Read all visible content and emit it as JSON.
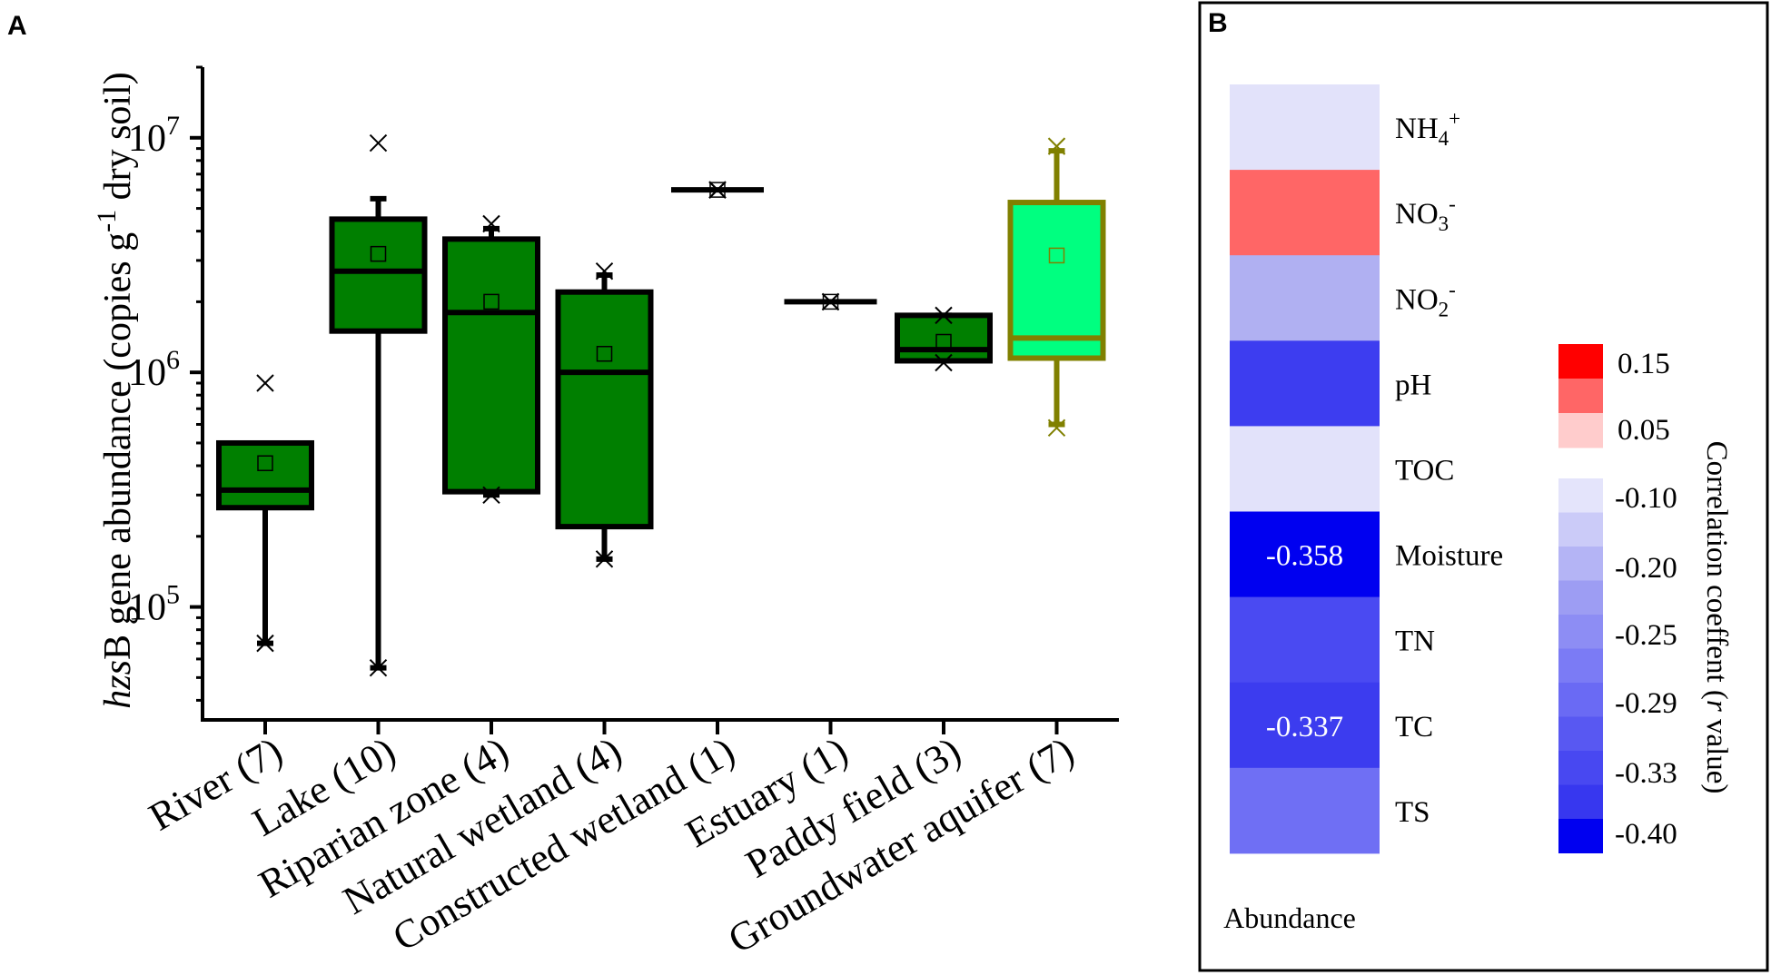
{
  "panelA": {
    "label": "A",
    "chart_data": {
      "type": "box",
      "yscale": "log",
      "ylim": [
        33000,
        20000000
      ],
      "yticks": [
        {
          "value": 100000,
          "base": "10",
          "exp": "5"
        },
        {
          "value": 1000000,
          "base": "10",
          "exp": "6"
        },
        {
          "value": 10000000,
          "base": "10",
          "exp": "7"
        }
      ],
      "ylabel": {
        "italic": "hzs",
        "pre": "B gene abundance (copies g",
        "sup": "-1",
        "post": " dry soil)"
      },
      "categories": [
        "River (7)",
        "Lake (10)",
        "Riparian zone (4)",
        "Natural wetland (4)",
        "Constructed wetland (1)",
        "Estuary (1)",
        "Paddy field (3)",
        "Groundwater aquifer (7)"
      ],
      "boxes": [
        {
          "q1": 265000,
          "median": 315000,
          "q3": 500000,
          "whisker_low": 70000,
          "whisker_high": 500000,
          "mean": 410000,
          "min": 70000,
          "max": 900000,
          "fill": "#007f00",
          "stroke": "#000000"
        },
        {
          "q1": 1500000,
          "median": 2700000,
          "q3": 4500000,
          "whisker_low": 55000,
          "whisker_high": 5500000,
          "mean": 3200000,
          "min": 55000,
          "max": 9500000,
          "fill": "#007f00",
          "stroke": "#000000"
        },
        {
          "q1": 310000,
          "median": 1800000,
          "q3": 3700000,
          "whisker_low": 300000,
          "whisker_high": 4100000,
          "mean": 2000000,
          "min": 300000,
          "max": 4300000,
          "fill": "#007f00",
          "stroke": "#000000"
        },
        {
          "q1": 220000,
          "median": 1000000,
          "q3": 2200000,
          "whisker_low": 160000,
          "whisker_high": 2600000,
          "mean": 1200000,
          "min": 160000,
          "max": 2700000,
          "fill": "#007f00",
          "stroke": "#000000"
        },
        {
          "q1": 6000000,
          "median": 6000000,
          "q3": 6000000,
          "whisker_low": 6000000,
          "whisker_high": 6000000,
          "mean": 6000000,
          "min": 6000000,
          "max": 6000000,
          "fill": "#007f00",
          "stroke": "#000000"
        },
        {
          "q1": 2000000,
          "median": 2000000,
          "q3": 2000000,
          "whisker_low": 2000000,
          "whisker_high": 2000000,
          "mean": 2000000,
          "min": 2000000,
          "max": 2000000,
          "fill": "#007f00",
          "stroke": "#000000"
        },
        {
          "q1": 1120000,
          "median": 1250000,
          "q3": 1750000,
          "whisker_low": 1120000,
          "whisker_high": 1750000,
          "mean": 1350000,
          "min": 1100000,
          "max": 1750000,
          "fill": "#007f00",
          "stroke": "#000000"
        },
        {
          "q1": 1150000,
          "median": 1400000,
          "q3": 5300000,
          "whisker_low": 600000,
          "whisker_high": 8800000,
          "mean": 3150000,
          "min": 580000,
          "max": 9200000,
          "fill": "#00ff80",
          "stroke": "#808000"
        }
      ]
    }
  },
  "panelB": {
    "label": "B",
    "chart_data": {
      "type": "heatmap",
      "column_label": "Abundance",
      "rows": [
        {
          "base": "NH",
          "sub": "4",
          "sup": "+",
          "value": -0.1,
          "color": "#e2e2fa",
          "annotation": ""
        },
        {
          "base": "NO",
          "sub": "3",
          "sup": "-",
          "value": 0.1,
          "color": "#ff6666",
          "annotation": ""
        },
        {
          "base": "NO",
          "sub": "2",
          "sup": "-",
          "value": -0.2,
          "color": "#b0b0f2",
          "annotation": ""
        },
        {
          "base": "pH",
          "sub": "",
          "sup": "",
          "value": -0.33,
          "color": "#3d3df0",
          "annotation": ""
        },
        {
          "base": "TOC",
          "sub": "",
          "sup": "",
          "value": -0.1,
          "color": "#e2e2fa",
          "annotation": ""
        },
        {
          "base": "Moisture",
          "sub": "",
          "sup": "",
          "value": -0.358,
          "color": "#0000f0",
          "annotation": "-0.358"
        },
        {
          "base": "TN",
          "sub": "",
          "sup": "",
          "value": -0.31,
          "color": "#4a4af2",
          "annotation": ""
        },
        {
          "base": "TC",
          "sub": "",
          "sup": "",
          "value": -0.337,
          "color": "#3c3cef",
          "annotation": "-0.337"
        },
        {
          "base": "TS",
          "sub": "",
          "sup": "",
          "value": -0.27,
          "color": "#6f6ff4",
          "annotation": ""
        }
      ],
      "legend": {
        "title": "Correlation coeffent (",
        "title_italic": "r",
        "title_post": " value)",
        "positive_colors": [
          "#ff0000",
          "#ff6666",
          "#ffcccc"
        ],
        "negative_colors": [
          "#e4e4fb",
          "#cbcbf8",
          "#b4b4f5",
          "#9d9df3",
          "#8d8df4",
          "#7b7bf5",
          "#6a6af4",
          "#5858f2",
          "#4848f1",
          "#3737ef",
          "#0000f0"
        ],
        "positive_labels": [
          "0.15",
          "0.05"
        ],
        "negative_labels": [
          "-0.10",
          "-0.20",
          "-0.25",
          "-0.29",
          "-0.33",
          "-0.40"
        ]
      }
    }
  }
}
